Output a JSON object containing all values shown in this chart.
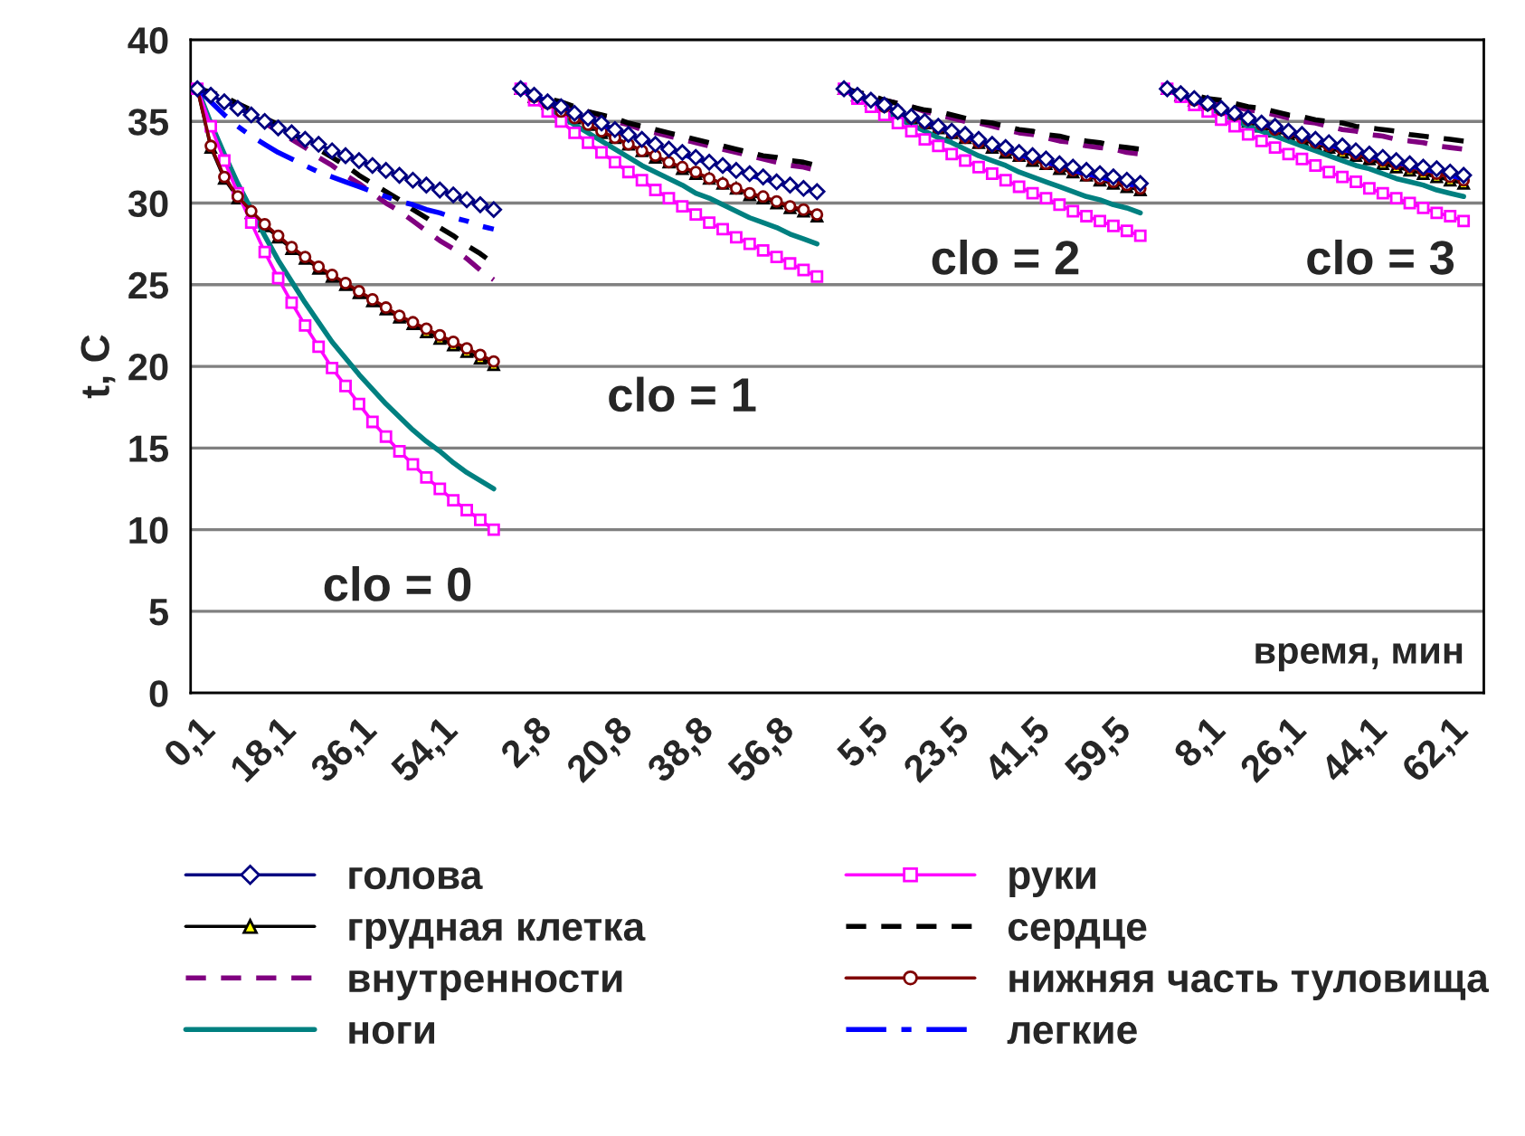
{
  "chart_data": {
    "type": "line",
    "ylabel": "t, C",
    "ylim": [
      0,
      40
    ],
    "yticks": [
      0,
      5,
      10,
      15,
      20,
      25,
      30,
      35,
      40
    ],
    "grid": "y",
    "legend": "bottom",
    "categories": [
      "0,1",
      null,
      null,
      null,
      null,
      null,
      "18,1",
      null,
      null,
      null,
      null,
      null,
      "36,1",
      null,
      null,
      null,
      null,
      null,
      "54,1",
      null,
      null,
      null,
      null,
      null,
      null,
      "2,8",
      null,
      null,
      null,
      null,
      null,
      "20,8",
      null,
      null,
      null,
      null,
      null,
      "38,8",
      null,
      null,
      null,
      null,
      null,
      "56,8",
      null,
      null,
      null,
      null,
      null,
      null,
      "5,5",
      null,
      null,
      null,
      null,
      null,
      "23,5",
      null,
      null,
      null,
      null,
      null,
      "41,5",
      null,
      null,
      null,
      null,
      null,
      "59,5",
      null,
      null,
      null,
      null,
      null,
      null,
      "8,1",
      null,
      null,
      null,
      null,
      null,
      "26,1",
      null,
      null,
      null,
      null,
      null,
      "44,1",
      null,
      null,
      null,
      null,
      null,
      "62,1",
      null,
      null
    ],
    "series": [
      {
        "name": "голова",
        "color": "#000080",
        "marker": "diamond",
        "line_style": "solid",
        "values": [
          37,
          36.6,
          36.2,
          35.8,
          35.4,
          35.0,
          34.6,
          34.3,
          33.9,
          33.6,
          33.2,
          32.9,
          32.6,
          32.3,
          32.0,
          31.7,
          31.4,
          31.1,
          30.8,
          30.5,
          30.2,
          29.9,
          29.6,
          null,
          37,
          36.6,
          36.2,
          35.9,
          35.5,
          35.2,
          34.9,
          34.5,
          34.2,
          33.9,
          33.6,
          33.3,
          33.1,
          32.8,
          32.5,
          32.3,
          32.0,
          31.8,
          31.6,
          31.3,
          31.1,
          30.9,
          30.7,
          null,
          37,
          36.6,
          36.3,
          36.0,
          35.6,
          35.3,
          35.0,
          34.7,
          34.4,
          34.2,
          33.9,
          33.6,
          33.4,
          33.1,
          32.9,
          32.7,
          32.4,
          32.2,
          32.0,
          31.8,
          31.6,
          31.4,
          31.2,
          null,
          37,
          36.7,
          36.4,
          36.1,
          35.8,
          35.5,
          35.2,
          34.9,
          34.7,
          34.4,
          34.2,
          33.9,
          33.7,
          33.5,
          33.2,
          33.0,
          32.8,
          32.6,
          32.4,
          32.2,
          32.1,
          31.9,
          31.7,
          null
        ]
      },
      {
        "name": "грудная клетка",
        "color": "#000000",
        "marker": "triangle",
        "line_style": "solid",
        "values": [
          37,
          33.4,
          31.5,
          30.3,
          29.4,
          28.6,
          27.9,
          27.2,
          26.6,
          26.0,
          25.5,
          25.0,
          24.5,
          24.0,
          23.5,
          23.0,
          22.6,
          22.1,
          21.7,
          21.3,
          20.9,
          20.5,
          20.1,
          null,
          37,
          36.5,
          36.1,
          35.6,
          35.2,
          34.8,
          34.3,
          34.0,
          33.6,
          33.2,
          32.8,
          32.5,
          32.1,
          31.8,
          31.5,
          31.2,
          30.9,
          30.5,
          30.3,
          30.0,
          29.7,
          29.5,
          29.2,
          null,
          37,
          36.6,
          36.3,
          35.9,
          35.6,
          35.2,
          34.9,
          34.6,
          34.3,
          34.0,
          33.7,
          33.4,
          33.1,
          32.9,
          32.6,
          32.4,
          32.1,
          31.9,
          31.7,
          31.4,
          31.2,
          31.0,
          30.8,
          null,
          37,
          36.6,
          36.3,
          36.0,
          35.6,
          35.3,
          35.0,
          34.7,
          34.4,
          34.2,
          33.9,
          33.6,
          33.4,
          33.1,
          32.9,
          32.7,
          32.4,
          32.2,
          32.0,
          31.8,
          31.6,
          31.4,
          31.2,
          null
        ]
      },
      {
        "name": "внутренности",
        "color": "#800080",
        "marker": "none",
        "line_style": "dashed",
        "values": [
          37,
          36.7,
          36.3,
          35.9,
          35.4,
          34.9,
          34.4,
          33.9,
          33.4,
          32.8,
          32.3,
          31.7,
          31.2,
          30.6,
          30.0,
          29.5,
          28.9,
          28.3,
          27.7,
          27.2,
          26.6,
          25.9,
          25.3,
          null,
          37,
          36.7,
          36.4,
          36.1,
          35.8,
          35.6,
          35.3,
          35.0,
          34.8,
          34.5,
          34.3,
          34.1,
          33.9,
          33.7,
          33.5,
          33.3,
          33.1,
          32.9,
          32.7,
          32.5,
          32.3,
          32.2,
          32.0,
          null,
          37,
          36.8,
          36.5,
          36.3,
          36.1,
          35.9,
          35.6,
          35.4,
          35.2,
          35.0,
          34.9,
          34.7,
          34.5,
          34.3,
          34.2,
          34.0,
          33.8,
          33.7,
          33.5,
          33.4,
          33.3,
          33.1,
          33.0,
          null,
          37,
          36.8,
          36.6,
          36.3,
          36.1,
          35.9,
          35.7,
          35.6,
          35.4,
          35.2,
          35.0,
          34.9,
          34.7,
          34.5,
          34.4,
          34.2,
          34.1,
          33.9,
          33.8,
          33.7,
          33.5,
          33.4,
          33.3,
          null
        ]
      },
      {
        "name": "ноги",
        "color": "#008080",
        "marker": "none",
        "line_style": "solid",
        "values": [
          37,
          34.9,
          33.0,
          31.2,
          29.6,
          28.0,
          26.5,
          25.2,
          23.9,
          22.7,
          21.5,
          20.5,
          19.5,
          18.6,
          17.7,
          16.9,
          16.1,
          15.4,
          14.8,
          14.1,
          13.5,
          13.0,
          12.5,
          null,
          37,
          36.4,
          35.9,
          35.3,
          34.8,
          34.3,
          33.8,
          33.3,
          32.8,
          32.3,
          31.9,
          31.5,
          31.1,
          30.6,
          30.3,
          29.9,
          29.5,
          29.1,
          28.8,
          28.5,
          28.1,
          27.8,
          27.5,
          null,
          37,
          36.5,
          36.1,
          35.7,
          35.2,
          34.8,
          34.4,
          34.0,
          33.7,
          33.3,
          32.9,
          32.6,
          32.3,
          31.9,
          31.6,
          31.3,
          31.0,
          30.7,
          30.4,
          30.2,
          29.9,
          29.7,
          29.4,
          null,
          37,
          36.6,
          36.2,
          35.8,
          35.5,
          35.1,
          34.7,
          34.4,
          34.1,
          33.8,
          33.5,
          33.2,
          32.9,
          32.6,
          32.3,
          32.1,
          31.8,
          31.5,
          31.3,
          31.1,
          30.8,
          30.6,
          30.4,
          null
        ]
      },
      {
        "name": "руки",
        "color": "#ff00ff",
        "marker": "square",
        "line_style": "solid",
        "values": [
          37,
          34.7,
          32.6,
          30.6,
          28.8,
          27.0,
          25.4,
          23.9,
          22.5,
          21.2,
          19.9,
          18.8,
          17.7,
          16.6,
          15.7,
          14.8,
          14.0,
          13.2,
          12.5,
          11.8,
          11.2,
          10.6,
          10.0,
          null,
          37,
          36.3,
          35.6,
          35.0,
          34.3,
          33.7,
          33.1,
          32.5,
          31.9,
          31.4,
          30.8,
          30.3,
          29.8,
          29.3,
          28.8,
          28.4,
          27.9,
          27.5,
          27.1,
          26.7,
          26.3,
          25.9,
          25.5,
          null,
          37,
          36.4,
          35.9,
          35.4,
          34.9,
          34.4,
          33.9,
          33.5,
          33.0,
          32.6,
          32.2,
          31.8,
          31.4,
          31.0,
          30.6,
          30.3,
          29.9,
          29.5,
          29.2,
          28.9,
          28.6,
          28.3,
          28.0,
          null,
          37,
          36.5,
          36.0,
          35.6,
          35.1,
          34.7,
          34.2,
          33.8,
          33.4,
          33.0,
          32.7,
          32.3,
          31.9,
          31.6,
          31.3,
          30.9,
          30.6,
          30.3,
          30.0,
          29.7,
          29.4,
          29.2,
          28.9,
          null
        ]
      },
      {
        "name": "сердце",
        "color": "#000000",
        "marker": "none",
        "line_style": "dashed",
        "values": [
          37,
          36.8,
          36.5,
          36.1,
          35.7,
          35.2,
          34.8,
          34.3,
          33.8,
          33.3,
          32.8,
          32.3,
          31.7,
          31.2,
          30.7,
          30.2,
          29.6,
          29.1,
          28.5,
          28.0,
          27.4,
          26.9,
          26.3,
          null,
          37,
          36.7,
          36.4,
          36.2,
          35.9,
          35.6,
          35.4,
          35.2,
          34.9,
          34.7,
          34.5,
          34.3,
          34.1,
          33.9,
          33.7,
          33.5,
          33.3,
          33.1,
          32.9,
          32.8,
          32.6,
          32.5,
          32.3,
          null,
          37,
          36.8,
          36.6,
          36.3,
          36.1,
          35.9,
          35.7,
          35.6,
          35.4,
          35.2,
          35.0,
          34.9,
          34.7,
          34.5,
          34.4,
          34.2,
          34.1,
          33.9,
          33.8,
          33.7,
          33.5,
          33.4,
          33.3,
          null,
          37,
          36.8,
          36.6,
          36.4,
          36.3,
          36.1,
          35.9,
          35.8,
          35.6,
          35.4,
          35.3,
          35.1,
          35.0,
          34.9,
          34.7,
          34.6,
          34.5,
          34.4,
          34.2,
          34.1,
          34.0,
          33.9,
          33.8,
          null
        ]
      },
      {
        "name": "нижняя часть туловища",
        "color": "#800000",
        "marker": "circle",
        "line_style": "solid",
        "values": [
          37,
          33.5,
          31.6,
          30.4,
          29.5,
          28.7,
          28.0,
          27.3,
          26.7,
          26.1,
          25.6,
          25.1,
          24.6,
          24.1,
          23.6,
          23.1,
          22.7,
          22.3,
          21.9,
          21.5,
          21.1,
          20.7,
          20.3,
          null,
          37,
          36.5,
          36.1,
          35.6,
          35.2,
          34.8,
          34.4,
          34.0,
          33.6,
          33.2,
          32.9,
          32.5,
          32.2,
          31.9,
          31.5,
          31.2,
          30.9,
          30.6,
          30.4,
          30.1,
          29.8,
          29.6,
          29.3,
          null,
          37,
          36.6,
          36.3,
          35.9,
          35.6,
          35.2,
          34.9,
          34.6,
          34.3,
          34.0,
          33.7,
          33.5,
          33.2,
          32.9,
          32.7,
          32.4,
          32.2,
          32.0,
          31.7,
          31.5,
          31.3,
          31.1,
          30.9,
          null,
          37,
          36.7,
          36.3,
          36.0,
          35.7,
          35.4,
          35.1,
          34.8,
          34.5,
          34.3,
          34.0,
          33.7,
          33.5,
          33.3,
          33.0,
          32.8,
          32.6,
          32.4,
          32.2,
          32.0,
          31.8,
          31.6,
          31.4,
          null
        ]
      },
      {
        "name": "легкие",
        "color": "#0000ff",
        "marker": "none",
        "line_style": "dashdot",
        "values": [
          37,
          36.2,
          35.4,
          34.7,
          34.1,
          33.6,
          33.1,
          32.7,
          32.3,
          31.9,
          31.6,
          31.3,
          31.0,
          30.7,
          30.4,
          30.1,
          29.9,
          29.6,
          29.4,
          29.1,
          28.9,
          28.6,
          28.4,
          null,
          37,
          36.6,
          36.2,
          35.9,
          35.5,
          35.2,
          34.8,
          34.5,
          34.2,
          33.9,
          33.6,
          33.3,
          33.0,
          32.7,
          32.5,
          32.2,
          32.0,
          31.7,
          31.5,
          31.3,
          31.0,
          30.8,
          30.6,
          null,
          37,
          36.6,
          36.3,
          35.9,
          35.6,
          35.3,
          35.0,
          34.7,
          34.4,
          34.1,
          33.8,
          33.5,
          33.3,
          33.0,
          32.7,
          32.5,
          32.3,
          32.0,
          31.8,
          31.6,
          31.4,
          31.2,
          31.0,
          null,
          37,
          36.7,
          36.3,
          36.0,
          35.7,
          35.4,
          35.1,
          34.9,
          34.6,
          34.3,
          34.1,
          33.8,
          33.6,
          33.3,
          33.1,
          32.9,
          32.7,
          32.5,
          32.3,
          32.1,
          31.9,
          31.7,
          31.5,
          null
        ]
      }
    ],
    "annotations": [
      "clo = 0",
      "clo = 1",
      "clo = 2",
      "clo = 3",
      "время, мин"
    ]
  }
}
